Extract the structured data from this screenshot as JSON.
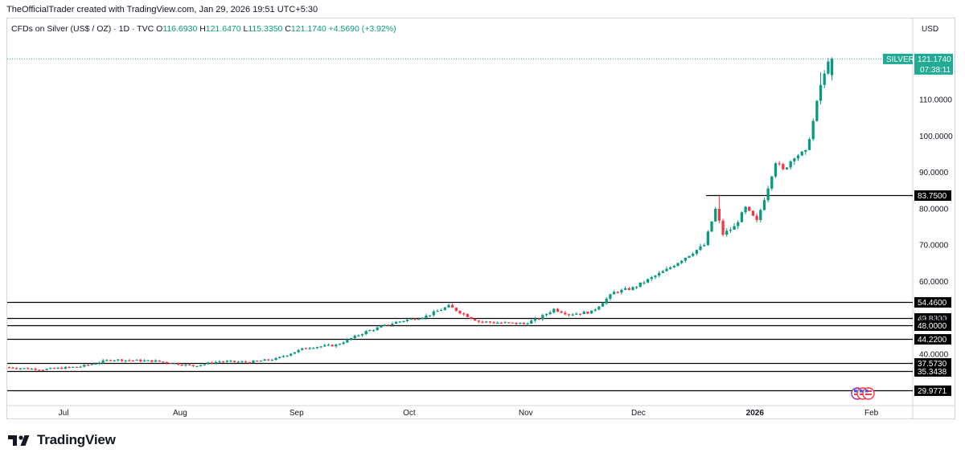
{
  "header": {
    "attribution": "TheOfficialTrader created with TradingView.com, Jan 29, 2026 19:51 UTC+5:30"
  },
  "legend": {
    "symbol": "CFDs on Silver (US$ / OZ) · 1D · TVC",
    "o_label": "O",
    "o": "116.6930",
    "h_label": "H",
    "h": "121.6470",
    "l_label": "L",
    "l": "115.3350",
    "c_label": "C",
    "c": "121.1740",
    "change": "+4.5690 (+3.92%)"
  },
  "axis": {
    "currency": "USD"
  },
  "last_price": {
    "symbol": "SILVER",
    "price": "121.1740",
    "countdown": "07:38:11"
  },
  "brand": {
    "name": "TradingView"
  },
  "colors": {
    "up": "#089981",
    "down": "#f23645",
    "text": "#131722",
    "grid": "#d1d4dc",
    "last": "#22ab94"
  },
  "chart_data": {
    "type": "candlestick",
    "x_ticks": [
      {
        "label": "Jul",
        "day": 15
      },
      {
        "label": "Aug",
        "day": 46
      },
      {
        "label": "Sep",
        "day": 77
      },
      {
        "label": "Oct",
        "day": 107
      },
      {
        "label": "Nov",
        "day": 138
      },
      {
        "label": "Dec",
        "day": 168
      },
      {
        "label": "2026",
        "day": 199,
        "bold": true
      },
      {
        "label": "Feb",
        "day": 230
      }
    ],
    "y_ticks": [
      "40.0000",
      "50.0000",
      "60.0000",
      "70.0000",
      "80.0000",
      "90.0000",
      "100.0000",
      "110.0000"
    ],
    "ylim": [
      28,
      132
    ],
    "xlim_days": [
      0,
      241
    ],
    "horizontal_levels": [
      {
        "value": "83.7500",
        "start_day": 186
      },
      {
        "value": "54.4600",
        "start_day": 0
      },
      {
        "value": "49.8300",
        "start_day": 0
      },
      {
        "value": "48.0000",
        "start_day": 0
      },
      {
        "value": "44.2200",
        "start_day": 0
      },
      {
        "value": "37.5730",
        "start_day": 0
      },
      {
        "value": "35.3438",
        "start_day": 0
      },
      {
        "value": "29.9771",
        "start_day": 0
      }
    ],
    "anchors": [
      {
        "day": 0,
        "price": 36.4
      },
      {
        "day": 10,
        "price": 35.8
      },
      {
        "day": 20,
        "price": 36.6
      },
      {
        "day": 28,
        "price": 38.5
      },
      {
        "day": 40,
        "price": 38.1
      },
      {
        "day": 50,
        "price": 36.8
      },
      {
        "day": 57,
        "price": 38.0
      },
      {
        "day": 65,
        "price": 37.8
      },
      {
        "day": 72,
        "price": 38.7
      },
      {
        "day": 80,
        "price": 41.8
      },
      {
        "day": 88,
        "price": 42.5
      },
      {
        "day": 96,
        "price": 46.2
      },
      {
        "day": 104,
        "price": 48.8
      },
      {
        "day": 112,
        "price": 50.5
      },
      {
        "day": 118,
        "price": 53.2
      },
      {
        "day": 122,
        "price": 51.0
      },
      {
        "day": 126,
        "price": 49.0
      },
      {
        "day": 132,
        "price": 48.6
      },
      {
        "day": 138,
        "price": 48.4
      },
      {
        "day": 142,
        "price": 49.8
      },
      {
        "day": 146,
        "price": 52.4
      },
      {
        "day": 150,
        "price": 51.0
      },
      {
        "day": 156,
        "price": 51.6
      },
      {
        "day": 162,
        "price": 57.0
      },
      {
        "day": 167,
        "price": 58.2
      },
      {
        "day": 172,
        "price": 61.0
      },
      {
        "day": 176,
        "price": 63.2
      },
      {
        "day": 180,
        "price": 66.0
      },
      {
        "day": 186,
        "price": 70.0
      },
      {
        "day": 189,
        "price": 79.8
      },
      {
        "day": 191,
        "price": 73.0
      },
      {
        "day": 194,
        "price": 75.0
      },
      {
        "day": 197,
        "price": 80.2
      },
      {
        "day": 200,
        "price": 76.5
      },
      {
        "day": 203,
        "price": 86.0
      },
      {
        "day": 205,
        "price": 93.0
      },
      {
        "day": 207,
        "price": 90.5
      },
      {
        "day": 210,
        "price": 94.5
      },
      {
        "day": 213,
        "price": 95.5
      },
      {
        "day": 215,
        "price": 104.0
      },
      {
        "day": 217,
        "price": 114.0
      },
      {
        "day": 218,
        "price": 116.7
      },
      {
        "day": 219,
        "price": 121.17
      }
    ],
    "last": {
      "open": 116.693,
      "high": 121.647,
      "low": 115.335,
      "close": 121.174
    }
  }
}
